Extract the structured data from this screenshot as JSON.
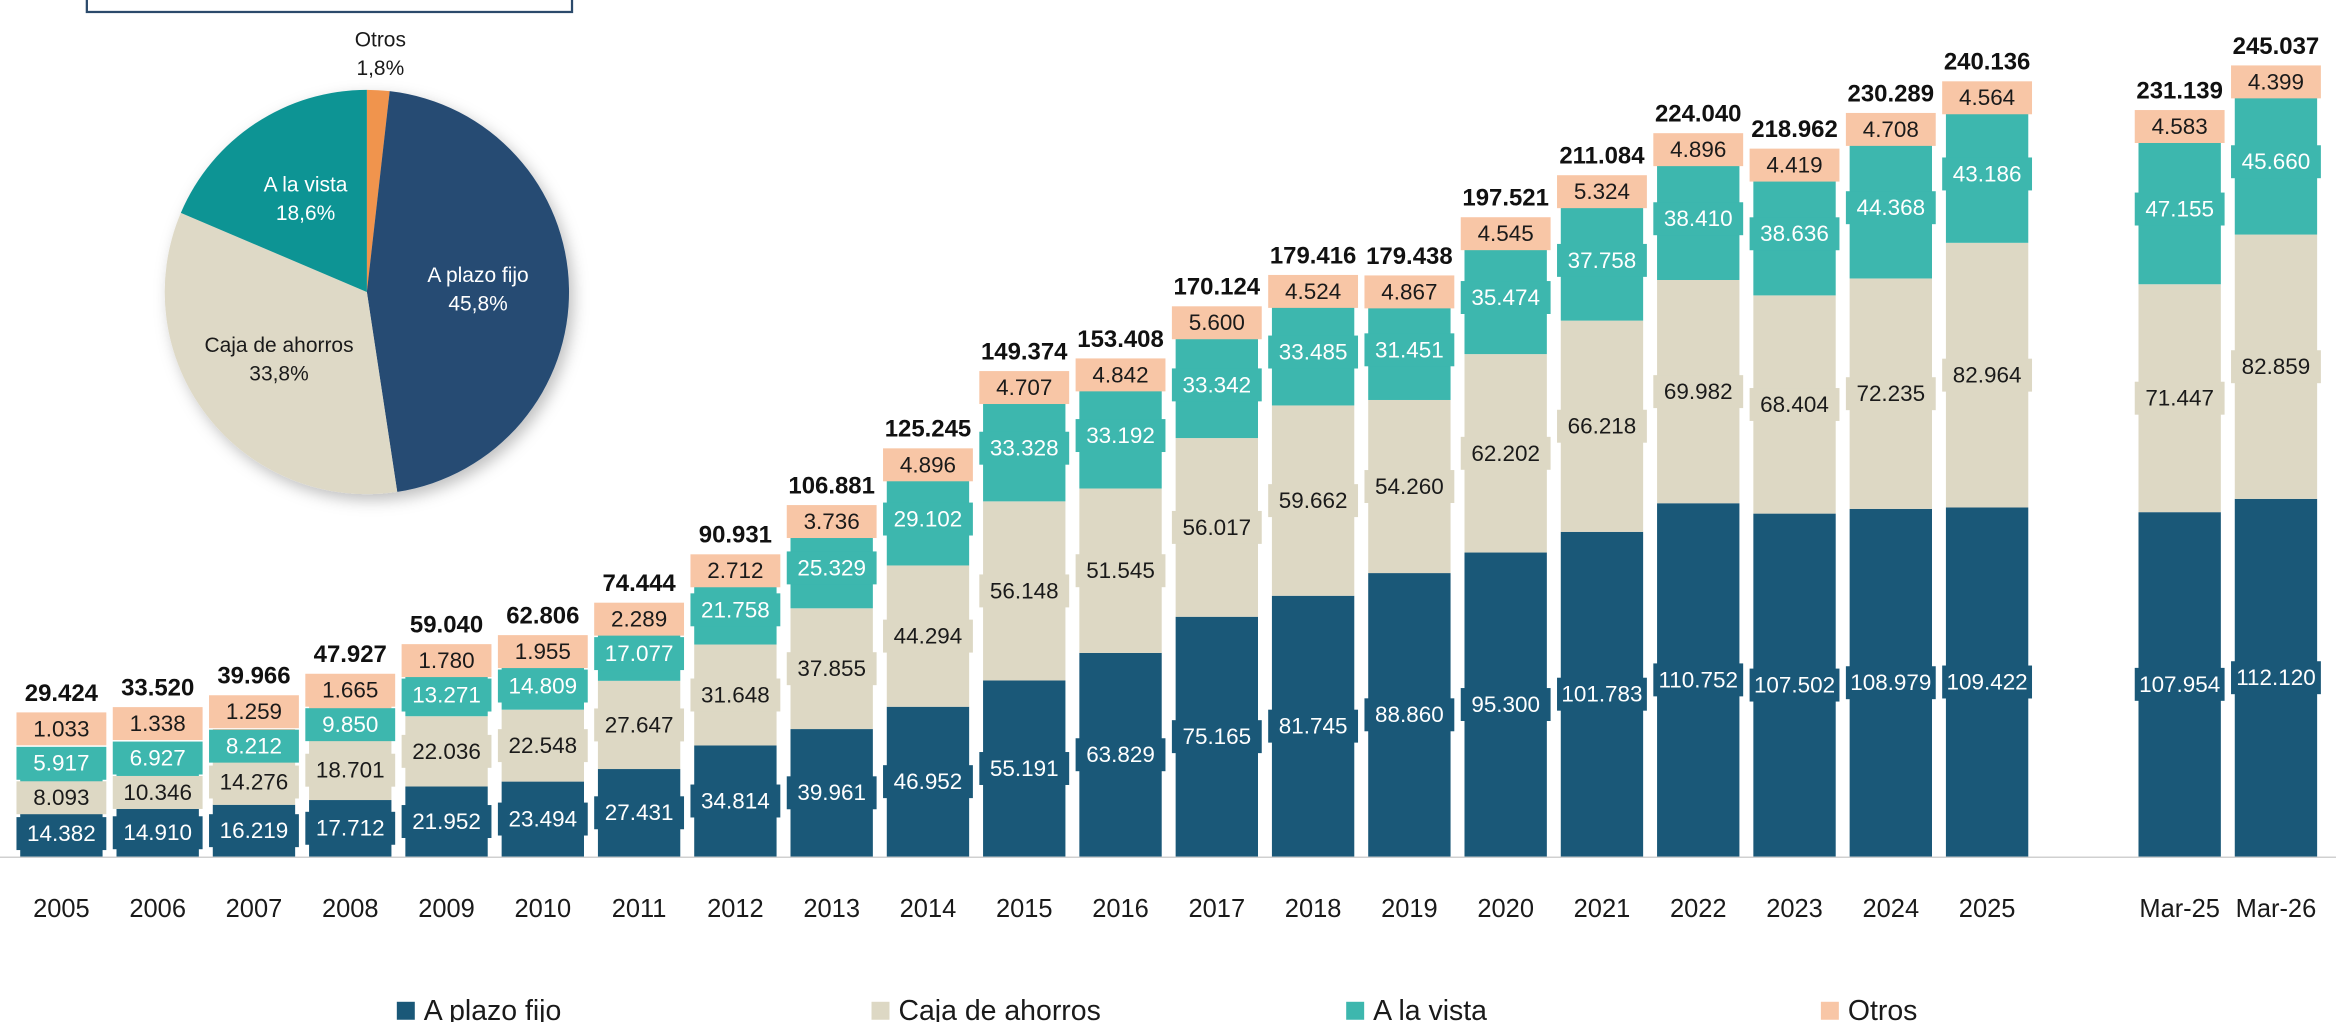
{
  "chart_data": [
    {
      "type": "bar",
      "stacked": true,
      "categories": [
        "2005",
        "2006",
        "2007",
        "2008",
        "2009",
        "2010",
        "2011",
        "2012",
        "2013",
        "2014",
        "2015",
        "2016",
        "2017",
        "2018",
        "2019",
        "2020",
        "2021",
        "2022",
        "2023",
        "2024",
        "2025",
        null,
        "Mar-25",
        "Mar-26"
      ],
      "series": [
        {
          "name": "A plazo fijo",
          "color": "#1a5878",
          "label_fill": "#1a5878",
          "label_text": "#ffffff",
          "values": [
            14382,
            14910,
            16219,
            17712,
            21952,
            23494,
            27431,
            34814,
            39961,
            46952,
            55191,
            63829,
            75165,
            81745,
            88860,
            95300,
            101783,
            110752,
            107502,
            108979,
            109422,
            null,
            107954,
            112120
          ],
          "value_labels": [
            "14.382",
            "14.910",
            "16.219",
            "17.712",
            "21.952",
            "23.494",
            "27.431",
            "34.814",
            "39.961",
            "46.952",
            "55.191",
            "63.829",
            "75.165",
            "81.745",
            "88.860",
            "95.300",
            "101.783",
            "110.752",
            "107.502",
            "108.979",
            "109.422",
            null,
            "107.954",
            "112.120"
          ]
        },
        {
          "name": "Caja de ahorros",
          "color": "#ddd8c4",
          "label_fill": "#ddd8c4",
          "label_text": "#1a1a1a",
          "values": [
            8093,
            10346,
            14276,
            18701,
            22036,
            22548,
            27647,
            31648,
            37855,
            44294,
            56148,
            51545,
            56017,
            59662,
            54260,
            62202,
            66218,
            69982,
            68404,
            72235,
            82964,
            null,
            71447,
            82859
          ],
          "value_labels": [
            "8.093",
            "10.346",
            "14.276",
            "18.701",
            "22.036",
            "22.548",
            "27.647",
            "31.648",
            "37.855",
            "44.294",
            "56.148",
            "51.545",
            "56.017",
            "59.662",
            "54.260",
            "62.202",
            "66.218",
            "69.982",
            "68.404",
            "72.235",
            "82.964",
            null,
            "71.447",
            "82.859"
          ]
        },
        {
          "name": "A la vista",
          "color": "#3db7ae",
          "label_fill": "#3db7ae",
          "label_text": "#ffffff",
          "values": [
            5917,
            6927,
            8212,
            9850,
            13271,
            14809,
            17077,
            21758,
            25329,
            29102,
            33328,
            33192,
            33342,
            33485,
            31451,
            35474,
            37758,
            38410,
            38636,
            44368,
            43186,
            null,
            47155,
            45660
          ],
          "value_labels": [
            "5.917",
            "6.927",
            "8.212",
            "9.850",
            "13.271",
            "14.809",
            "17.077",
            "21.758",
            "25.329",
            "29.102",
            "33.328",
            "33.192",
            "33.342",
            "33.485",
            "31.451",
            "35.474",
            "37.758",
            "38.410",
            "38.636",
            "44.368",
            "43.186",
            null,
            "47.155",
            "45.660"
          ]
        },
        {
          "name": "Otros",
          "color": "#f8c6a6",
          "label_fill": "#f8c6a6",
          "label_text": "#1a1a1a",
          "values": [
            1033,
            1338,
            1259,
            1665,
            1780,
            1955,
            2289,
            2712,
            3736,
            4896,
            4707,
            4842,
            5600,
            4524,
            4867,
            4545,
            5324,
            4896,
            4419,
            4708,
            4564,
            null,
            4583,
            4399
          ],
          "value_labels": [
            "1.033",
            "1.338",
            "1.259",
            "1.665",
            "1.780",
            "1.955",
            "2.289",
            "2.712",
            "3.736",
            "4.896",
            "4.707",
            "4.842",
            "5.600",
            "4.524",
            "4.867",
            "4.545",
            "5.324",
            "4.896",
            "4.419",
            "4.708",
            "4.564",
            null,
            "4.583",
            "4.399"
          ]
        }
      ],
      "totals": {
        "values": [
          29424,
          33520,
          39966,
          47927,
          59040,
          62806,
          74444,
          90931,
          106881,
          125245,
          149374,
          153408,
          170124,
          179416,
          179438,
          197521,
          211084,
          224040,
          218962,
          230289,
          240136,
          null,
          231139,
          245037
        ],
        "value_labels": [
          "29.424",
          "33.520",
          "39.966",
          "47.927",
          "59.040",
          "62.806",
          "74.444",
          "90.931",
          "106.881",
          "125.245",
          "149.374",
          "153.408",
          "170.124",
          "179.416",
          "179.438",
          "197.521",
          "211.084",
          "224.040",
          "218.962",
          "230.289",
          "240.136",
          null,
          "231.139",
          "245.037"
        ]
      }
    },
    {
      "type": "pie",
      "categories": [
        "Otros",
        "A plazo fijo",
        "Caja de ahorros",
        "A la vista"
      ],
      "values": [
        1.8,
        45.8,
        33.8,
        18.6
      ],
      "value_labels": [
        "1,8%",
        "45,8%",
        "33,8%",
        "18,6%"
      ],
      "colors": [
        "#f0944d",
        "#264b73",
        "#ded9c6",
        "#0e9494"
      ],
      "label_colors": [
        "#1a1a1a",
        "#ffffff",
        "#1a1a1a",
        "#ffffff"
      ]
    }
  ]
}
